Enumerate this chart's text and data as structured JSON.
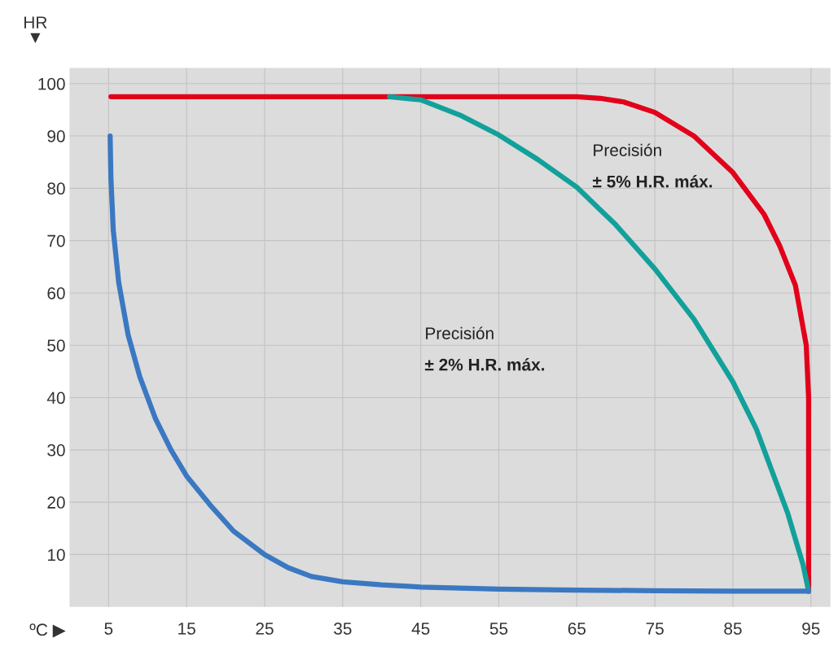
{
  "chart_data": {
    "type": "line",
    "xlabel": "ºC ▶",
    "ylabel": "HR\n▼",
    "xlim": [
      0,
      97.5
    ],
    "ylim": [
      0,
      103
    ],
    "xticks": [
      5,
      15,
      25,
      35,
      45,
      55,
      65,
      75,
      85,
      95
    ],
    "yticks": [
      10,
      20,
      30,
      40,
      50,
      60,
      70,
      80,
      90,
      100
    ],
    "grid": true,
    "marker": "none",
    "line_style": "solid",
    "series": [
      {
        "color": "#e2001a",
        "x": [
          5.3,
          65,
          68,
          71,
          75,
          80,
          85,
          89,
          91,
          93,
          94.4,
          94.7,
          94.7
        ],
        "values": [
          97.5,
          97.5,
          97.2,
          96.5,
          94.5,
          90,
          83,
          75,
          69,
          61.5,
          50,
          40,
          3
        ]
      },
      {
        "color": "#12a19a",
        "x": [
          41,
          45,
          50,
          55,
          60,
          65,
          70,
          75,
          80,
          85,
          88,
          90,
          92,
          94,
          94.7
        ],
        "values": [
          97.5,
          96.9,
          94,
          90.2,
          85.5,
          80.2,
          73,
          64.6,
          55,
          43,
          34,
          26,
          18,
          8,
          3
        ]
      },
      {
        "color": "#3b78c2",
        "x": [
          5.2,
          5.3,
          5.6,
          6.3,
          7.5,
          9,
          11,
          13,
          15,
          18,
          21,
          25,
          28,
          31,
          35,
          40,
          45,
          55,
          65,
          75,
          85,
          94.7
        ],
        "values": [
          90,
          82,
          72,
          62,
          52,
          44,
          36,
          30,
          25,
          19.5,
          14.5,
          10,
          7.5,
          5.8,
          4.8,
          4.2,
          3.8,
          3.4,
          3.2,
          3.1,
          3,
          3
        ]
      }
    ],
    "annotations": [
      "Precisión",
      "± 5% H.R. máx.",
      "Precisión",
      "± 2% H.R. máx."
    ]
  }
}
